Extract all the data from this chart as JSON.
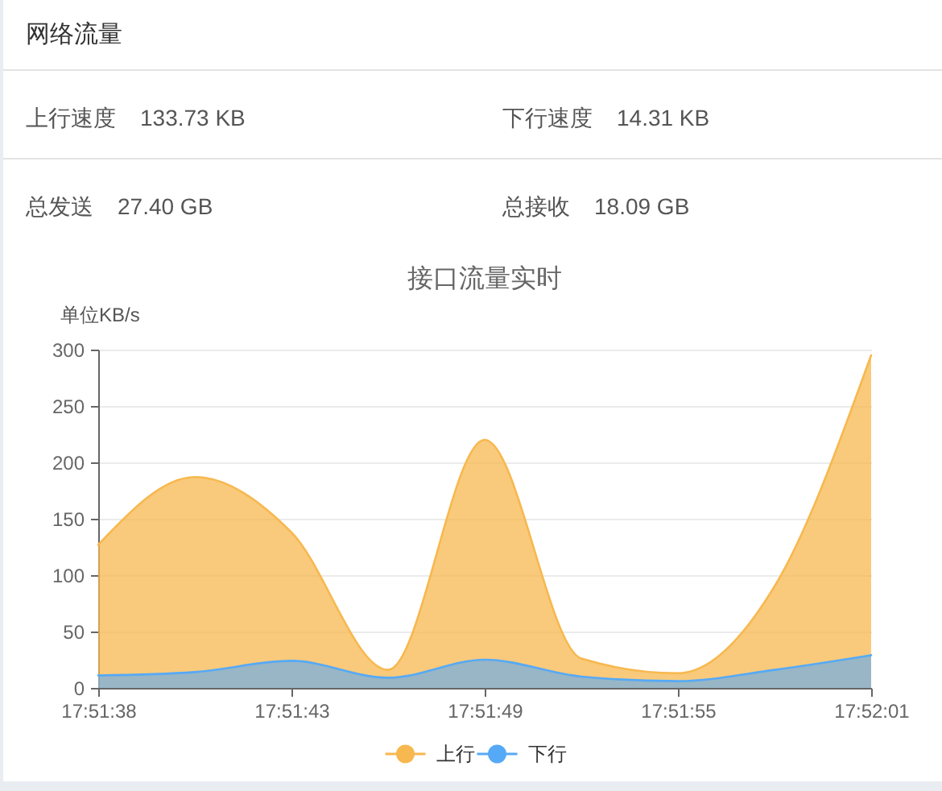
{
  "chart_data": [
    {
      "type": "other",
      "title": "网络流量",
      "annotations": [
        "上行速度",
        "133.73 KB",
        "下行速度",
        "14.31 KB",
        "总发送",
        "27.40 GB",
        "总接收",
        "18.09 GB"
      ]
    },
    {
      "type": "area",
      "title": "接口流量实时",
      "ylabel": "单位KB/s",
      "categories": [
        "17:51:38",
        null,
        "17:51:43",
        null,
        "17:51:49",
        null,
        "17:51:55",
        null,
        "17:52:01"
      ],
      "series": [
        {
          "name": "上行",
          "color": "#f7b84f",
          "values": [
            127,
            187,
            138,
            16,
            220,
            26,
            13,
            90,
            295
          ]
        },
        {
          "name": "下行",
          "color": "#56a9f6",
          "values": [
            11,
            14,
            24,
            9,
            25,
            10,
            6,
            16,
            29
          ]
        }
      ],
      "ylim": [
        0,
        300
      ],
      "yticks": [
        0,
        50,
        100,
        150,
        200,
        250,
        300
      ],
      "grid": "y",
      "legend": "bottom"
    }
  ]
}
